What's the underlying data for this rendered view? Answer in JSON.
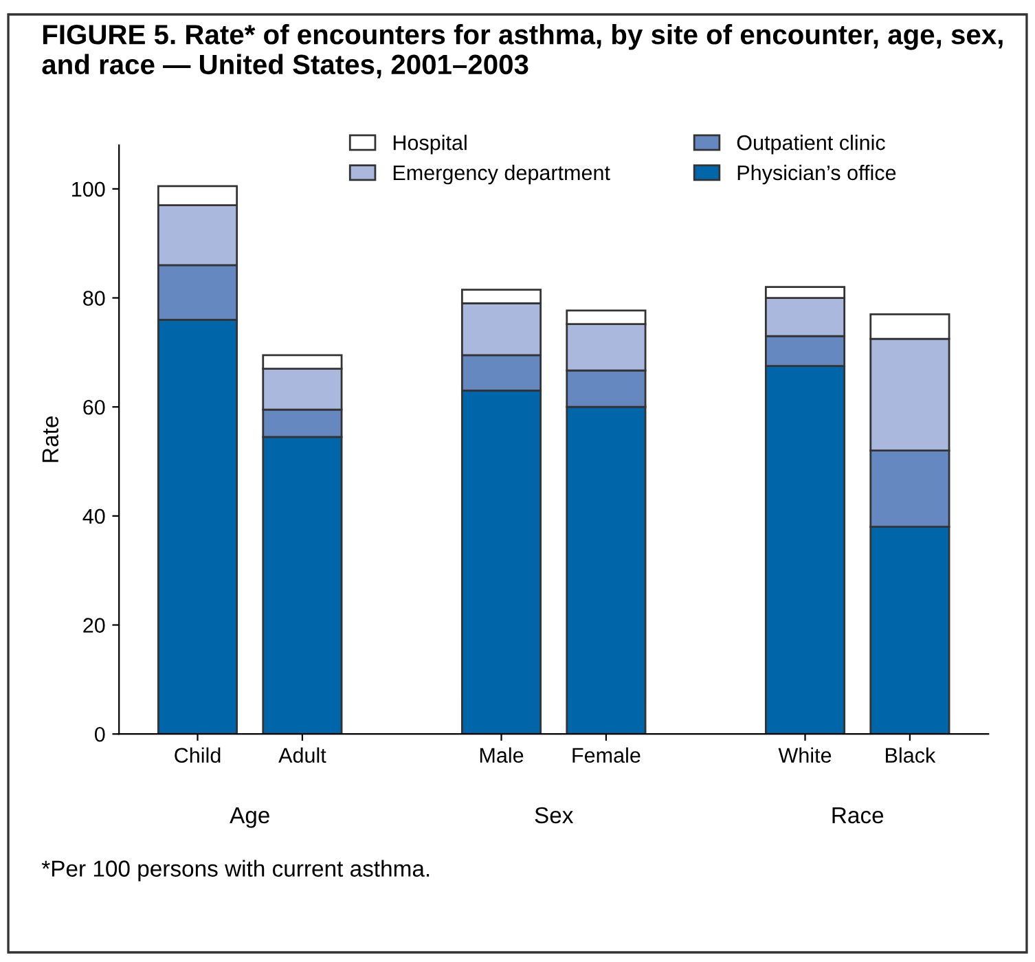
{
  "chart_data": {
    "type": "bar",
    "stacked": true,
    "title": "FIGURE 5. Rate* of encounters for asthma, by site of encounter, age, sex, and race — United States, 2001–2003",
    "ylabel": "Rate",
    "categories": [
      "Child",
      "Adult",
      "Male",
      "Female",
      "White",
      "Black"
    ],
    "series": [
      {
        "name": "Physician’s office",
        "color": "#0066aa",
        "values": [
          76,
          54.5,
          63,
          60,
          67.5,
          38
        ]
      },
      {
        "name": "Outpatient clinic",
        "color": "#6688c0",
        "values": [
          10,
          5,
          6.5,
          6.7,
          5.5,
          14
        ]
      },
      {
        "name": "Emergency department",
        "color": "#aab8dd",
        "values": [
          11,
          7.5,
          9.5,
          8.5,
          7,
          20.5
        ]
      },
      {
        "name": "Hospital",
        "color": "#ffffff",
        "values": [
          3.5,
          2.5,
          2.5,
          2.5,
          2,
          4.5
        ]
      }
    ],
    "ylim": [
      0,
      108
    ],
    "yticks": [
      0,
      20,
      40,
      60,
      80,
      100
    ],
    "grid": false,
    "legend": "top",
    "annotations": [
      "Age",
      "Sex",
      "Race",
      "*Per 100 persons with current asthma."
    ]
  }
}
